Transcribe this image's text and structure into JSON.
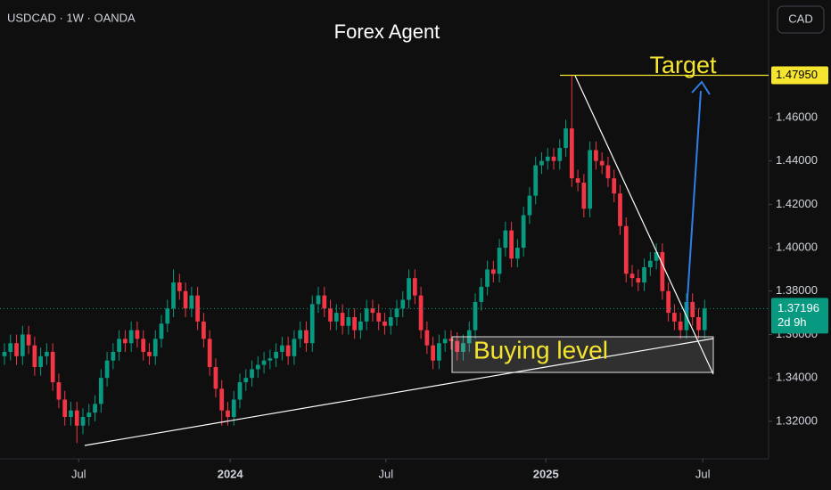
{
  "chart_data": {
    "type": "candlestick",
    "symbol": "USDCAD · 1W · OANDA",
    "title": "Forex Agent",
    "currency_button": "CAD",
    "annotations": {
      "target": "Target",
      "buying": "Buying level"
    },
    "up_color": "#089981",
    "down_color": "#f23645",
    "ylim": [
      1.3027,
      1.5142
    ],
    "yticks": [
      {
        "value": 1.32,
        "label": "1.32000"
      },
      {
        "value": 1.34,
        "label": "1.34000"
      },
      {
        "value": 1.36,
        "label": "1.36000"
      },
      {
        "value": 1.38,
        "label": "1.38000"
      },
      {
        "value": 1.4,
        "label": "1.40000"
      },
      {
        "value": 1.42,
        "label": "1.42000"
      },
      {
        "value": 1.44,
        "label": "1.44000"
      },
      {
        "value": 1.46,
        "label": "1.46000"
      }
    ],
    "xlim": [
      -0.74,
      126.6
    ],
    "xticks": [
      {
        "value": 12.3,
        "label": "Jul"
      },
      {
        "value": 37.4,
        "label": "2024"
      },
      {
        "value": 63.2,
        "label": "Jul"
      },
      {
        "value": 89.7,
        "label": "2025"
      },
      {
        "value": 115.7,
        "label": "Jul"
      }
    ],
    "target_price": {
      "value": 1.4795,
      "label": "1.47950"
    },
    "last_price": {
      "value": 1.37196,
      "label": "1.37196",
      "countdown": "2d 9h"
    },
    "grid": false,
    "open": [
      1.35,
      1.352,
      1.356,
      1.35,
      1.36,
      1.355,
      1.345,
      1.35,
      1.352,
      1.338,
      1.33,
      1.322,
      1.325,
      1.318,
      1.322,
      1.324,
      1.328,
      1.34,
      1.348,
      1.352,
      1.358,
      1.356,
      1.362,
      1.358,
      1.352,
      1.35,
      1.358,
      1.365,
      1.372,
      1.384,
      1.38,
      1.372,
      1.378,
      1.366,
      1.358,
      1.345,
      1.335,
      1.325,
      1.322,
      1.33,
      1.338,
      1.34,
      1.344,
      1.346,
      1.348,
      1.349,
      1.352,
      1.355,
      1.35,
      1.358,
      1.362,
      1.356,
      1.374,
      1.378,
      1.372,
      1.366,
      1.37,
      1.364,
      1.368,
      1.362,
      1.366,
      1.372,
      1.37,
      1.366,
      1.364,
      1.368,
      1.372,
      1.376,
      1.386,
      1.378,
      1.362,
      1.355,
      1.348,
      1.356,
      1.358,
      1.357,
      1.352,
      1.356,
      1.362,
      1.375,
      1.382,
      1.39,
      1.388,
      1.4,
      1.408,
      1.395,
      1.4,
      1.415,
      1.424,
      1.438,
      1.44,
      1.442,
      1.44,
      1.446,
      1.455,
      1.432,
      1.43,
      1.418,
      1.445,
      1.44,
      1.438,
      1.432,
      1.425,
      1.41,
      1.388,
      1.386,
      1.384,
      1.391,
      1.394,
      1.398,
      1.38,
      1.37,
      1.366,
      1.362,
      1.375,
      1.368,
      1.362
    ],
    "high": [
      1.356,
      1.36,
      1.36,
      1.364,
      1.364,
      1.359,
      1.354,
      1.356,
      1.356,
      1.342,
      1.334,
      1.329,
      1.329,
      1.326,
      1.328,
      1.332,
      1.344,
      1.352,
      1.356,
      1.362,
      1.362,
      1.366,
      1.366,
      1.362,
      1.356,
      1.362,
      1.369,
      1.376,
      1.39,
      1.388,
      1.384,
      1.382,
      1.382,
      1.37,
      1.362,
      1.349,
      1.339,
      1.329,
      1.334,
      1.342,
      1.344,
      1.348,
      1.35,
      1.352,
      1.353,
      1.356,
      1.359,
      1.359,
      1.362,
      1.366,
      1.366,
      1.378,
      1.382,
      1.382,
      1.376,
      1.374,
      1.374,
      1.372,
      1.372,
      1.37,
      1.376,
      1.376,
      1.374,
      1.37,
      1.372,
      1.376,
      1.38,
      1.39,
      1.39,
      1.382,
      1.366,
      1.359,
      1.36,
      1.362,
      1.362,
      1.361,
      1.36,
      1.366,
      1.379,
      1.386,
      1.394,
      1.394,
      1.404,
      1.412,
      1.412,
      1.404,
      1.419,
      1.428,
      1.442,
      1.444,
      1.446,
      1.446,
      1.45,
      1.459,
      1.4795,
      1.436,
      1.434,
      1.449,
      1.449,
      1.444,
      1.442,
      1.436,
      1.429,
      1.414,
      1.392,
      1.39,
      1.395,
      1.398,
      1.402,
      1.402,
      1.384,
      1.374,
      1.37,
      1.379,
      1.379,
      1.372,
      1.376
    ],
    "low": [
      1.346,
      1.348,
      1.346,
      1.346,
      1.351,
      1.341,
      1.341,
      1.346,
      1.334,
      1.326,
      1.318,
      1.318,
      1.31,
      1.314,
      1.318,
      1.32,
      1.324,
      1.336,
      1.344,
      1.348,
      1.352,
      1.352,
      1.354,
      1.348,
      1.346,
      1.346,
      1.354,
      1.361,
      1.368,
      1.376,
      1.368,
      1.368,
      1.362,
      1.354,
      1.341,
      1.331,
      1.318,
      1.318,
      1.318,
      1.326,
      1.334,
      1.336,
      1.34,
      1.342,
      1.344,
      1.345,
      1.348,
      1.346,
      1.346,
      1.354,
      1.352,
      1.352,
      1.37,
      1.368,
      1.362,
      1.362,
      1.36,
      1.36,
      1.358,
      1.358,
      1.362,
      1.366,
      1.362,
      1.36,
      1.36,
      1.364,
      1.368,
      1.372,
      1.374,
      1.358,
      1.351,
      1.344,
      1.344,
      1.352,
      1.353,
      1.348,
      1.348,
      1.352,
      1.358,
      1.371,
      1.378,
      1.384,
      1.384,
      1.396,
      1.391,
      1.391,
      1.396,
      1.411,
      1.42,
      1.434,
      1.436,
      1.436,
      1.436,
      1.442,
      1.428,
      1.426,
      1.414,
      1.414,
      1.436,
      1.434,
      1.428,
      1.421,
      1.406,
      1.384,
      1.382,
      1.38,
      1.38,
      1.387,
      1.39,
      1.376,
      1.366,
      1.362,
      1.358,
      1.358,
      1.364,
      1.358,
      1.358
    ],
    "close": [
      1.352,
      1.356,
      1.35,
      1.36,
      1.355,
      1.345,
      1.35,
      1.352,
      1.338,
      1.33,
      1.322,
      1.325,
      1.318,
      1.322,
      1.324,
      1.328,
      1.34,
      1.348,
      1.352,
      1.358,
      1.356,
      1.362,
      1.358,
      1.352,
      1.35,
      1.358,
      1.365,
      1.372,
      1.384,
      1.38,
      1.372,
      1.378,
      1.366,
      1.358,
      1.345,
      1.335,
      1.325,
      1.322,
      1.33,
      1.338,
      1.34,
      1.344,
      1.346,
      1.348,
      1.349,
      1.352,
      1.355,
      1.35,
      1.358,
      1.362,
      1.356,
      1.374,
      1.378,
      1.372,
      1.366,
      1.37,
      1.364,
      1.368,
      1.362,
      1.366,
      1.372,
      1.37,
      1.366,
      1.364,
      1.368,
      1.372,
      1.376,
      1.386,
      1.378,
      1.362,
      1.355,
      1.348,
      1.356,
      1.358,
      1.357,
      1.352,
      1.356,
      1.362,
      1.375,
      1.382,
      1.39,
      1.388,
      1.4,
      1.408,
      1.395,
      1.4,
      1.415,
      1.424,
      1.438,
      1.44,
      1.442,
      1.44,
      1.446,
      1.455,
      1.432,
      1.43,
      1.418,
      1.445,
      1.44,
      1.438,
      1.432,
      1.425,
      1.41,
      1.388,
      1.386,
      1.384,
      1.391,
      1.394,
      1.398,
      1.38,
      1.37,
      1.366,
      1.362,
      1.375,
      1.368,
      1.362,
      1.372
    ]
  }
}
